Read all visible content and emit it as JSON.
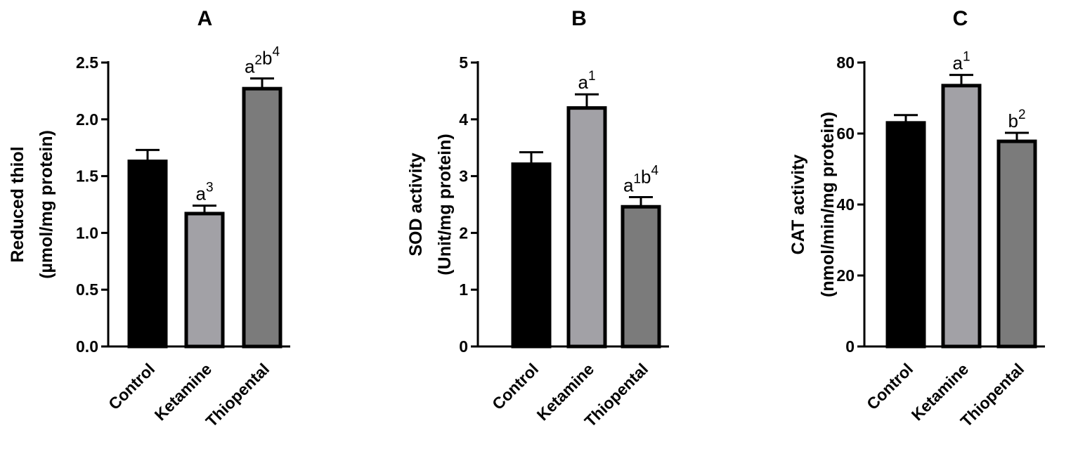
{
  "chart_data": [
    {
      "type": "bar",
      "title": "A",
      "ylabel_lines": [
        "Reduced thiol",
        "(µmol/mg protein)"
      ],
      "categories": [
        "Control",
        "Ketamine",
        "Thiopental"
      ],
      "values": [
        1.63,
        1.17,
        2.27
      ],
      "errors": [
        0.1,
        0.07,
        0.09
      ],
      "annotations": [
        [],
        [
          {
            "t": "a",
            "s": "3"
          }
        ],
        [
          {
            "t": "a",
            "s": "2"
          },
          {
            "t": "b",
            "s": "4"
          }
        ]
      ],
      "ylim": [
        0,
        2.5
      ],
      "yticks": [
        0,
        0.5,
        1.0,
        1.5,
        2.0,
        2.5
      ],
      "ytick_labels": [
        "0.0",
        "0.5",
        "1.0",
        "1.5",
        "2.0",
        "2.5"
      ],
      "colors": [
        "#000000",
        "#a2a1a6",
        "#7b7b7b"
      ],
      "grid": false,
      "legend": "none"
    },
    {
      "type": "bar",
      "title": "B",
      "ylabel_lines": [
        "SOD activity",
        "(Unit/mg protein)"
      ],
      "categories": [
        "Control",
        "Ketamine",
        "Thiopental"
      ],
      "values": [
        3.21,
        4.2,
        2.46
      ],
      "errors": [
        0.21,
        0.24,
        0.17
      ],
      "annotations": [
        [],
        [
          {
            "t": "a",
            "s": "1"
          }
        ],
        [
          {
            "t": "a",
            "s": "1"
          },
          {
            "t": "b",
            "s": "4"
          }
        ]
      ],
      "ylim": [
        0,
        5
      ],
      "yticks": [
        0,
        1,
        2,
        3,
        4,
        5
      ],
      "ytick_labels": [
        "0",
        "1",
        "2",
        "3",
        "4",
        "5"
      ],
      "colors": [
        "#000000",
        "#a2a1a6",
        "#7b7b7b"
      ],
      "grid": false,
      "legend": "none"
    },
    {
      "type": "bar",
      "title": "C",
      "ylabel_lines": [
        "CAT activity",
        "(nmol/min/mg protein)"
      ],
      "categories": [
        "Control",
        "Ketamine",
        "Thiopental"
      ],
      "values": [
        63,
        73.5,
        57.8
      ],
      "errors": [
        2.2,
        3,
        2.4
      ],
      "annotations": [
        [],
        [
          {
            "t": "a",
            "s": "1"
          }
        ],
        [
          {
            "t": "b",
            "s": "2"
          }
        ]
      ],
      "ylim": [
        0,
        80
      ],
      "yticks": [
        0,
        20,
        40,
        60,
        80
      ],
      "ytick_labels": [
        "0",
        "20",
        "40",
        "60",
        "80"
      ],
      "colors": [
        "#000000",
        "#a2a1a6",
        "#7b7b7b"
      ],
      "grid": false,
      "legend": "none"
    }
  ]
}
